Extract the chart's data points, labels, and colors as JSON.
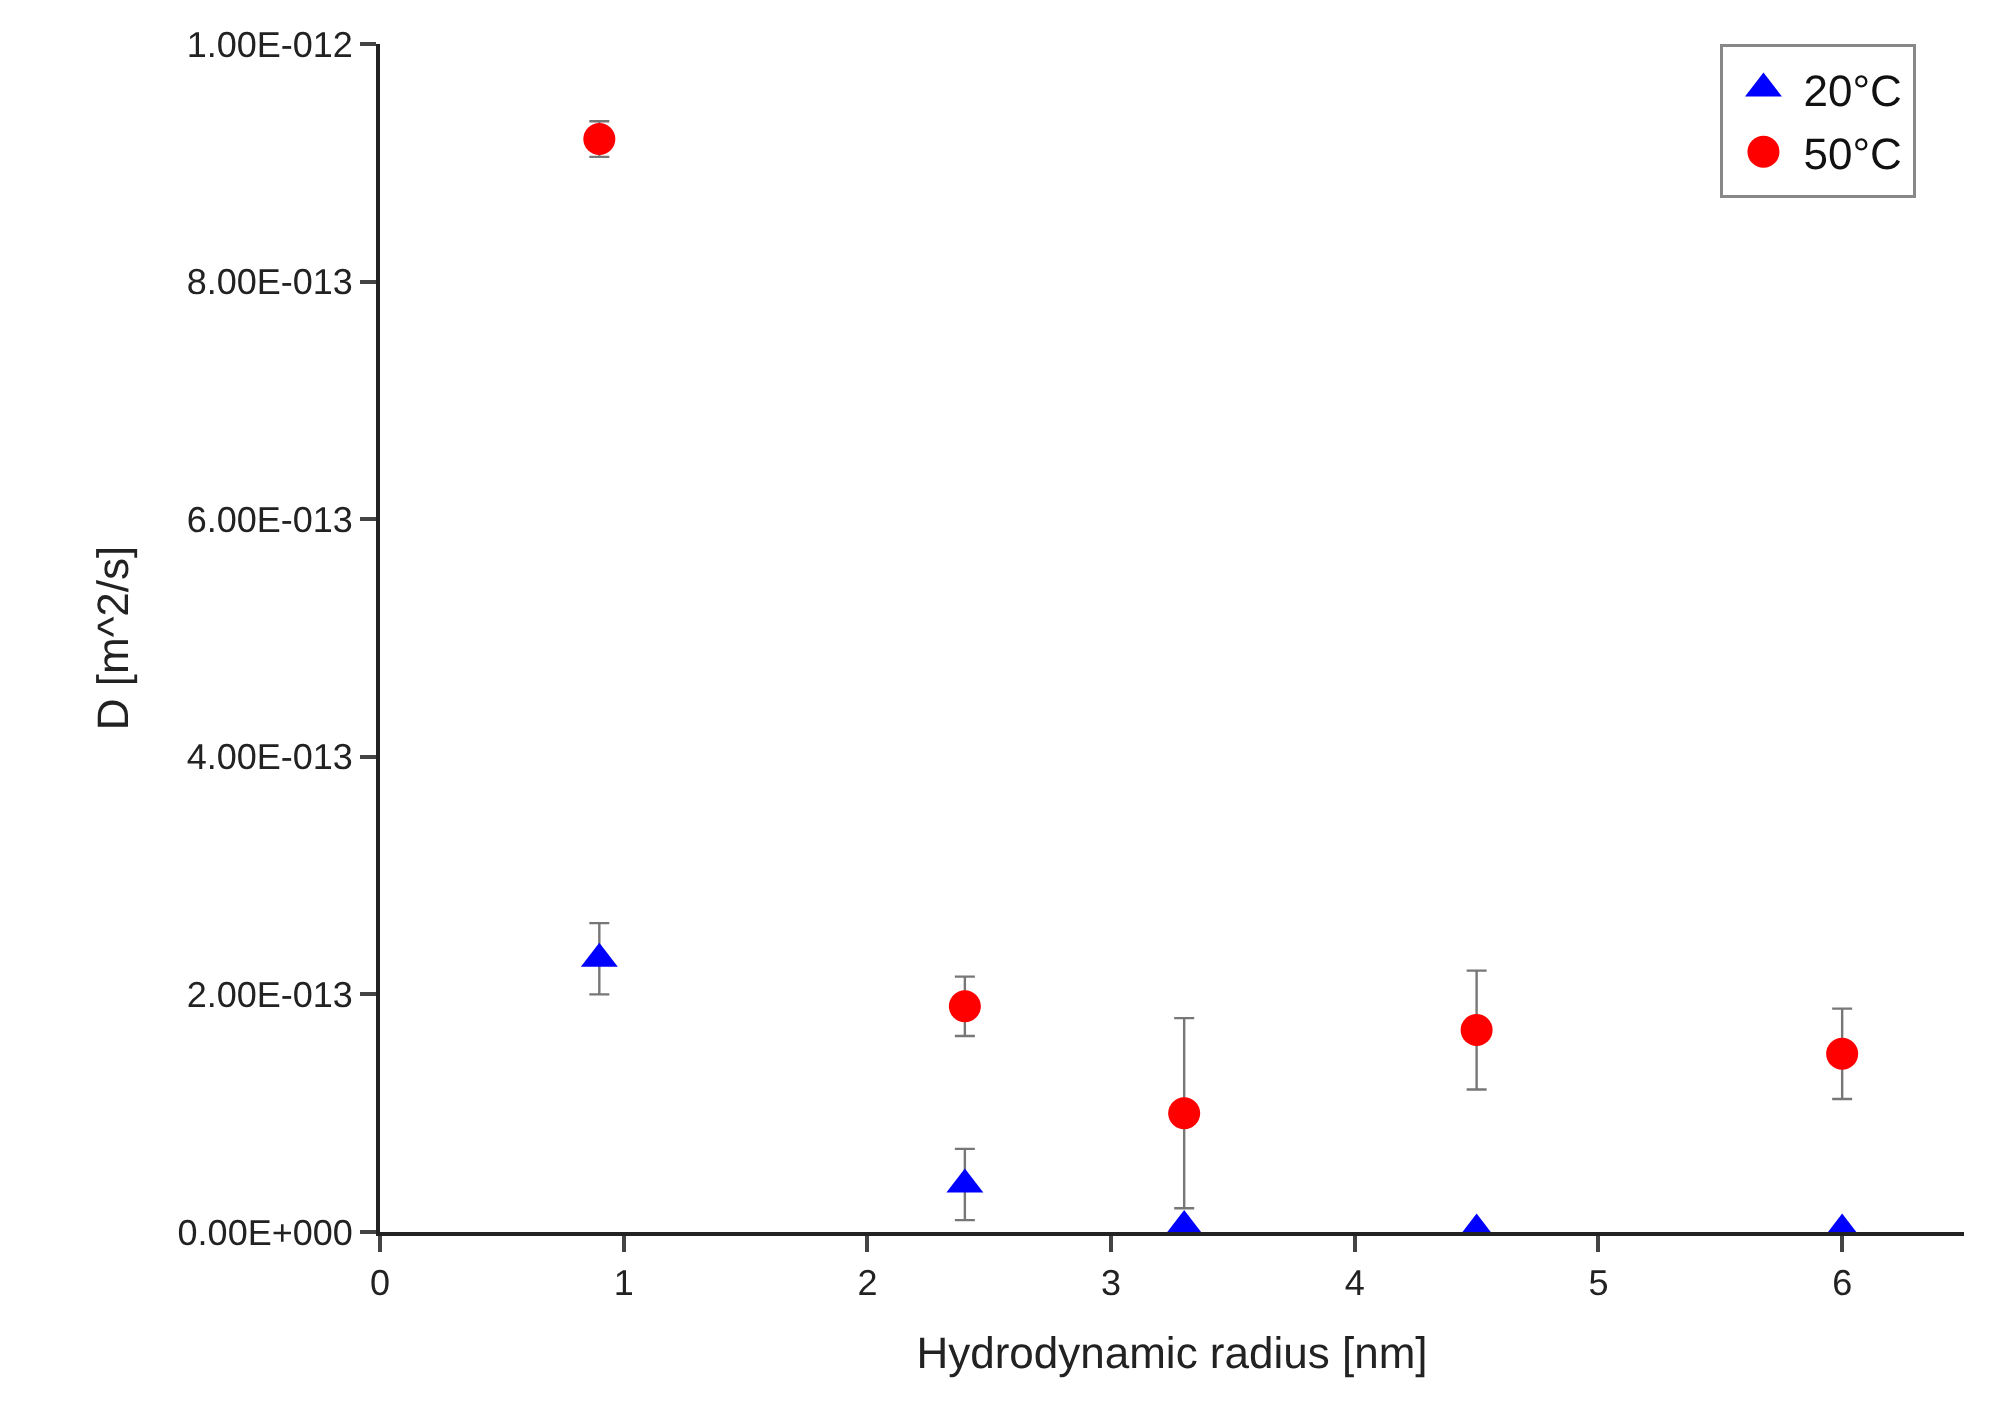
{
  "chart_data": {
    "type": "scatter",
    "xlabel": "Hydrodynamic radius [nm]",
    "ylabel": "D [m^2/s]",
    "x": [
      0.9,
      2.4,
      3.3,
      4.5,
      6
    ],
    "series": [
      {
        "name": "20°C",
        "color": "#0000ff",
        "marker": "triangle",
        "values": [
          2.3e-13,
          4e-14,
          5e-15,
          2e-15,
          2e-15
        ],
        "errors": [
          3e-14,
          3e-14,
          null,
          null,
          null
        ]
      },
      {
        "name": "50°C",
        "color": "#ff0000",
        "marker": "circle",
        "values": [
          9.2e-13,
          1.9e-13,
          1e-13,
          1.7e-13,
          1.5e-13
        ],
        "errors": [
          1.5e-14,
          2.5e-14,
          8e-14,
          5e-14,
          3.8e-14
        ]
      }
    ],
    "xlim": [
      0,
      6.5
    ],
    "xticks": [
      0,
      1,
      2,
      3,
      4,
      5,
      6
    ],
    "ylim": [
      0,
      1e-12
    ],
    "yticks": [
      {
        "value": 0,
        "label": "0.00E+000"
      },
      {
        "value": 2e-13,
        "label": "2.00E-013"
      },
      {
        "value": 4e-13,
        "label": "4.00E-013"
      },
      {
        "value": 6e-13,
        "label": "6.00E-013"
      },
      {
        "value": 8e-13,
        "label": "8.00E-013"
      },
      {
        "value": 1e-12,
        "label": "1.00E-012"
      }
    ],
    "grid": false,
    "legend": "top right"
  }
}
